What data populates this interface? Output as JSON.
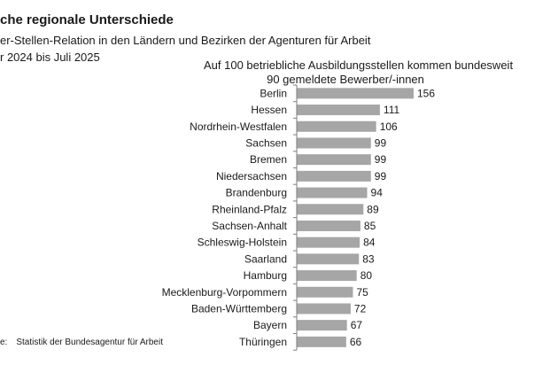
{
  "header": {
    "title": "che regionale Unterschiede",
    "subtitle": "er-Stellen-Relation  in den Ländern und Bezirken der Agenturen  für Arbeit",
    "period": "r 2024 bis Juli 2025"
  },
  "note": {
    "line1": "Auf 100 betriebliche Ausbildungsstellen  kommen bundesweit",
    "line2": "90 gemeldete Bewerber/-innen"
  },
  "source": {
    "label": "e:",
    "text": "Statistik  der Bundesagentur  für Arbeit"
  },
  "colors": {
    "bar": "#a6a6a6",
    "axis": "#7f7f7f"
  },
  "chart_data": {
    "type": "bar",
    "orientation": "horizontal",
    "categories": [
      "Berlin",
      "Hessen",
      "Nordrhein-Westfalen",
      "Sachsen",
      "Bremen",
      "Niedersachsen",
      "Brandenburg",
      "Rheinland-Pfalz",
      "Sachsen-Anhalt",
      "Schleswig-Holstein",
      "Saarland",
      "Hamburg",
      "Mecklenburg-Vorpommern",
      "Baden-Württemberg",
      "Bayern",
      "Thüringen"
    ],
    "values": [
      156,
      111,
      106,
      99,
      99,
      99,
      94,
      89,
      85,
      84,
      83,
      80,
      75,
      72,
      67,
      66
    ],
    "xlim": [
      0,
      156
    ],
    "grid": false,
    "legend": "none"
  }
}
